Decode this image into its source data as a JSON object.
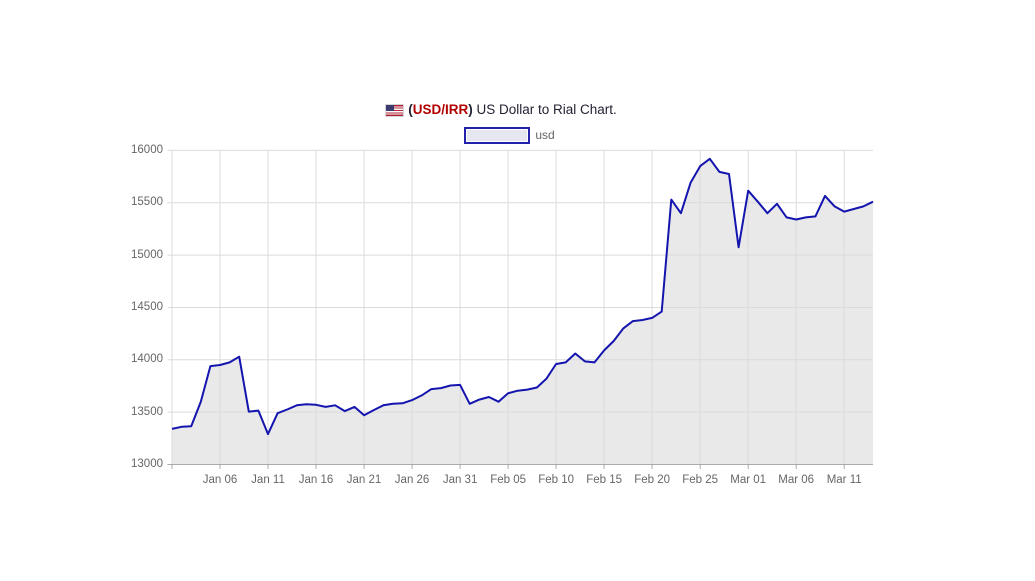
{
  "title": {
    "flag_icon": "us-flag",
    "paren_open": "(",
    "pair": "USD/IRR",
    "paren_close": ")",
    "rest": " US Dollar to Rial Chart."
  },
  "legend": {
    "label": "usd"
  },
  "chart_data": {
    "type": "area",
    "title": "(USD/IRR) US Dollar to Rial Chart.",
    "legend_entries": [
      "usd"
    ],
    "xlabel": "",
    "ylabel": "",
    "ylim": [
      13000,
      16000
    ],
    "yticks": [
      16000,
      15500,
      15000,
      14500,
      14000,
      13500,
      13000
    ],
    "grid": true,
    "legend_position": "top-center",
    "x": [
      "Jan 01",
      "Jan 02",
      "Jan 03",
      "Jan 04",
      "Jan 05",
      "Jan 06",
      "Jan 07",
      "Jan 08",
      "Jan 09",
      "Jan 10",
      "Jan 11",
      "Jan 12",
      "Jan 13",
      "Jan 14",
      "Jan 15",
      "Jan 16",
      "Jan 17",
      "Jan 18",
      "Jan 19",
      "Jan 20",
      "Jan 21",
      "Jan 22",
      "Jan 23",
      "Jan 24",
      "Jan 25",
      "Jan 26",
      "Jan 27",
      "Jan 28",
      "Jan 29",
      "Jan 30",
      "Jan 31",
      "Feb 01",
      "Feb 02",
      "Feb 03",
      "Feb 04",
      "Feb 05",
      "Feb 06",
      "Feb 07",
      "Feb 08",
      "Feb 09",
      "Feb 10",
      "Feb 11",
      "Feb 12",
      "Feb 13",
      "Feb 14",
      "Feb 15",
      "Feb 16",
      "Feb 17",
      "Feb 18",
      "Feb 19",
      "Feb 20",
      "Feb 21",
      "Feb 22",
      "Feb 23",
      "Feb 24",
      "Feb 25",
      "Feb 26",
      "Feb 27",
      "Feb 28",
      "Feb 29",
      "Mar 01",
      "Mar 02",
      "Mar 03",
      "Mar 04",
      "Mar 05",
      "Mar 06",
      "Mar 07",
      "Mar 08",
      "Mar 09",
      "Mar 10",
      "Mar 11",
      "Mar 12",
      "Mar 13",
      "Mar 14"
    ],
    "values": [
      13340,
      13360,
      13365,
      13600,
      13940,
      13950,
      13975,
      14030,
      13505,
      13515,
      13290,
      13490,
      13525,
      13565,
      13575,
      13570,
      13550,
      13565,
      13510,
      13550,
      13470,
      13520,
      13565,
      13580,
      13585,
      13615,
      13660,
      13720,
      13730,
      13755,
      13760,
      13580,
      13620,
      13645,
      13600,
      13680,
      13705,
      13715,
      13735,
      13820,
      13960,
      13975,
      14060,
      13985,
      13975,
      14090,
      14180,
      14300,
      14370,
      14380,
      14400,
      14460,
      15530,
      15400,
      15690,
      15850,
      15920,
      15795,
      15775,
      15075,
      15615,
      15510,
      15400,
      15490,
      15360,
      15340,
      15360,
      15370,
      15565,
      15465,
      15415,
      15440,
      15465,
      15510
    ],
    "xticks": [
      {
        "i": 0,
        "label": ""
      },
      {
        "i": 5,
        "label": "Jan 06"
      },
      {
        "i": 10,
        "label": "Jan 11"
      },
      {
        "i": 15,
        "label": "Jan 16"
      },
      {
        "i": 20,
        "label": "Jan 21"
      },
      {
        "i": 25,
        "label": "Jan 26"
      },
      {
        "i": 30,
        "label": "Jan 31"
      },
      {
        "i": 35,
        "label": "Feb 05"
      },
      {
        "i": 40,
        "label": "Feb 10"
      },
      {
        "i": 45,
        "label": "Feb 15"
      },
      {
        "i": 50,
        "label": "Feb 20"
      },
      {
        "i": 55,
        "label": "Feb 25"
      },
      {
        "i": 60,
        "label": "Mar 01"
      },
      {
        "i": 65,
        "label": "Mar 06"
      },
      {
        "i": 70,
        "label": "Mar 11"
      }
    ],
    "colors": {
      "line": "#1414AE",
      "fill": "#E9E9E9",
      "grid": "#DBDBDB",
      "axis": "#ABABAB",
      "tick_text": "#666666",
      "title_text": "#222233",
      "pair_red": "#B30000",
      "legend_border": "#2121AA",
      "legend_fill": "#E7E7F2"
    }
  }
}
